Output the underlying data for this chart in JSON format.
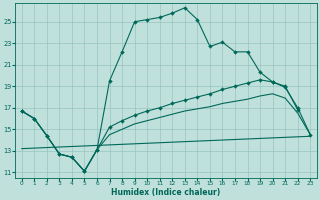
{
  "xlabel": "Humidex (Indice chaleur)",
  "bg_color": "#c0e0dc",
  "grid_color": "#98c4c0",
  "line_color": "#006858",
  "xlim": [
    -0.5,
    23.5
  ],
  "ylim": [
    10.5,
    26.7
  ],
  "xticks": [
    0,
    1,
    2,
    3,
    4,
    5,
    6,
    7,
    8,
    9,
    10,
    11,
    12,
    13,
    14,
    15,
    16,
    17,
    18,
    19,
    20,
    21,
    22,
    23
  ],
  "yticks": [
    11,
    13,
    15,
    17,
    19,
    21,
    23,
    25
  ],
  "curve1_x": [
    0,
    1,
    2,
    3,
    4,
    5,
    6,
    7,
    8,
    9,
    10,
    11,
    12,
    13,
    14,
    15,
    16,
    17,
    18,
    19,
    20,
    21,
    22
  ],
  "curve1_y": [
    16.7,
    16.0,
    14.4,
    12.7,
    12.4,
    11.1,
    13.1,
    19.5,
    22.2,
    25.0,
    25.2,
    25.4,
    25.8,
    26.3,
    25.2,
    22.7,
    23.1,
    22.2,
    22.2,
    20.3,
    19.4,
    19.0,
    16.8
  ],
  "curve2_x": [
    0,
    1,
    2,
    3,
    4,
    5,
    6,
    7,
    8,
    9,
    10,
    11,
    12,
    13,
    14,
    15,
    16,
    17,
    18,
    19,
    20,
    21,
    22,
    23
  ],
  "curve2_y": [
    16.7,
    16.0,
    14.4,
    12.7,
    12.4,
    11.1,
    13.1,
    15.2,
    15.8,
    16.3,
    16.7,
    17.0,
    17.4,
    17.7,
    18.0,
    18.3,
    18.7,
    19.0,
    19.3,
    19.6,
    19.4,
    18.9,
    17.0,
    14.5
  ],
  "curve3_x": [
    0,
    1,
    2,
    3,
    4,
    5,
    6,
    7,
    8,
    9,
    10,
    11,
    12,
    13,
    14,
    15,
    16,
    17,
    18,
    19,
    20,
    21,
    22,
    23
  ],
  "curve3_y": [
    16.7,
    16.0,
    14.4,
    12.7,
    12.4,
    11.1,
    13.1,
    14.5,
    15.0,
    15.5,
    15.8,
    16.1,
    16.4,
    16.7,
    16.9,
    17.1,
    17.4,
    17.6,
    17.8,
    18.1,
    18.3,
    17.9,
    16.5,
    14.5
  ],
  "curve4_x": [
    0,
    1,
    2,
    3,
    4,
    5,
    6,
    7,
    8,
    9,
    10,
    11,
    12,
    13,
    14,
    15,
    16,
    17,
    18,
    19,
    20,
    21,
    22,
    23
  ],
  "curve4_y": [
    13.2,
    13.25,
    13.3,
    13.35,
    13.4,
    13.45,
    13.5,
    13.55,
    13.6,
    13.65,
    13.7,
    13.75,
    13.8,
    13.85,
    13.9,
    13.95,
    14.0,
    14.05,
    14.1,
    14.15,
    14.2,
    14.25,
    14.3,
    14.35
  ]
}
